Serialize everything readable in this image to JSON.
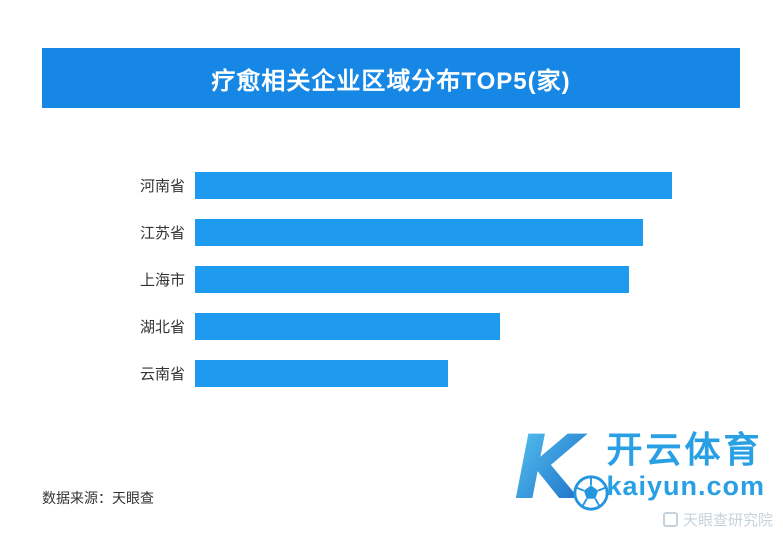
{
  "title": "疗愈相关企业区域分布TOP5(家)",
  "source": "数据来源：天眼查",
  "watermark": {
    "brand": "开云体育",
    "domain": "kaiyun.com",
    "faint_text": "天眼查研究院"
  },
  "colors": {
    "header_bg": "#1687E4",
    "bar": "#1E9BEE",
    "watermark_blue": "#2AA0E4"
  },
  "chart_data": {
    "type": "bar",
    "orientation": "horizontal",
    "title": "疗愈相关企业区域分布TOP5(家)",
    "categories": [
      "河南省",
      "江苏省",
      "上海市",
      "湖北省",
      "云南省"
    ],
    "values": [
      100,
      94,
      91,
      64,
      53
    ],
    "values_note": "relative bar lengths as % of longest bar; no numeric data labels or axis shown in chart",
    "xlabel": "",
    "ylabel": "",
    "data_labels": false,
    "axis_visible": false,
    "grid": false,
    "legend": false
  }
}
